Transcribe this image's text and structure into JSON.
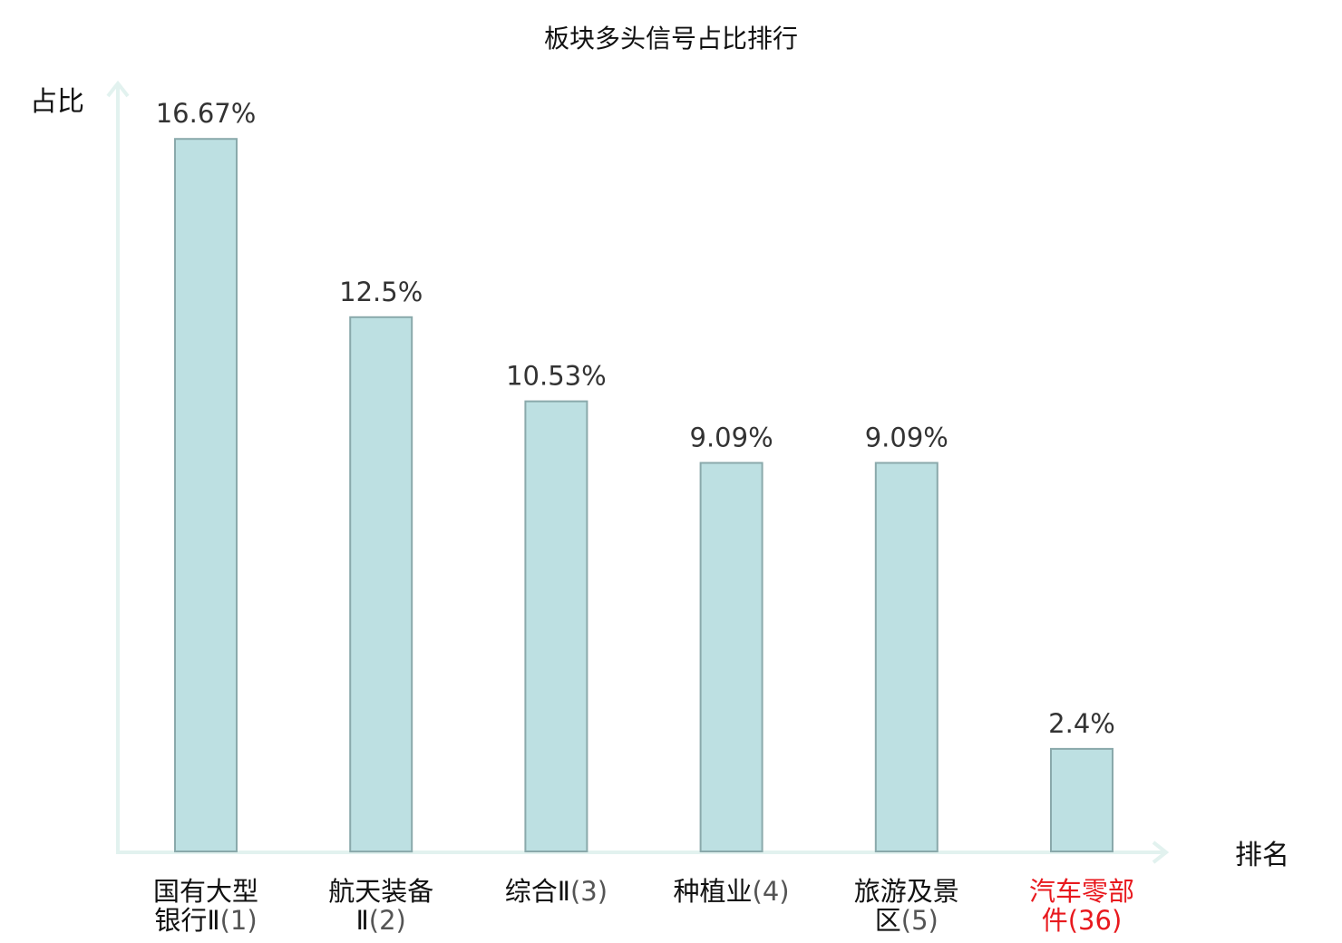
{
  "chart_data": {
    "type": "bar",
    "title": "板块多头信号占比排行",
    "ylabel": "占比",
    "xlabel": "排名",
    "ylim": [
      0,
      18
    ],
    "grid": false,
    "categories": [
      {
        "lines": [
          "国有大型",
          "银行Ⅱ(1)"
        ]
      },
      {
        "lines": [
          "航天装备",
          "Ⅱ(2)"
        ]
      },
      {
        "lines": [
          "综合Ⅱ(3)"
        ]
      },
      {
        "lines": [
          "种植业(4)"
        ]
      },
      {
        "lines": [
          "旅游及景",
          "区(5)"
        ]
      },
      {
        "lines": [
          "汽车零部",
          "件(36)"
        ],
        "highlight": true
      }
    ],
    "values": [
      16.67,
      12.5,
      10.53,
      9.09,
      9.09,
      2.4
    ],
    "value_labels": [
      "16.67%",
      "12.5%",
      "10.53%",
      "9.09%",
      "9.09%",
      "2.4%"
    ]
  },
  "colors": {
    "bar_fill": "#bde0e2",
    "bar_stroke": "#8aa9ab",
    "axis": "#e2f2ef",
    "highlight_text": "#e8191e",
    "normal_text": "#111111"
  }
}
